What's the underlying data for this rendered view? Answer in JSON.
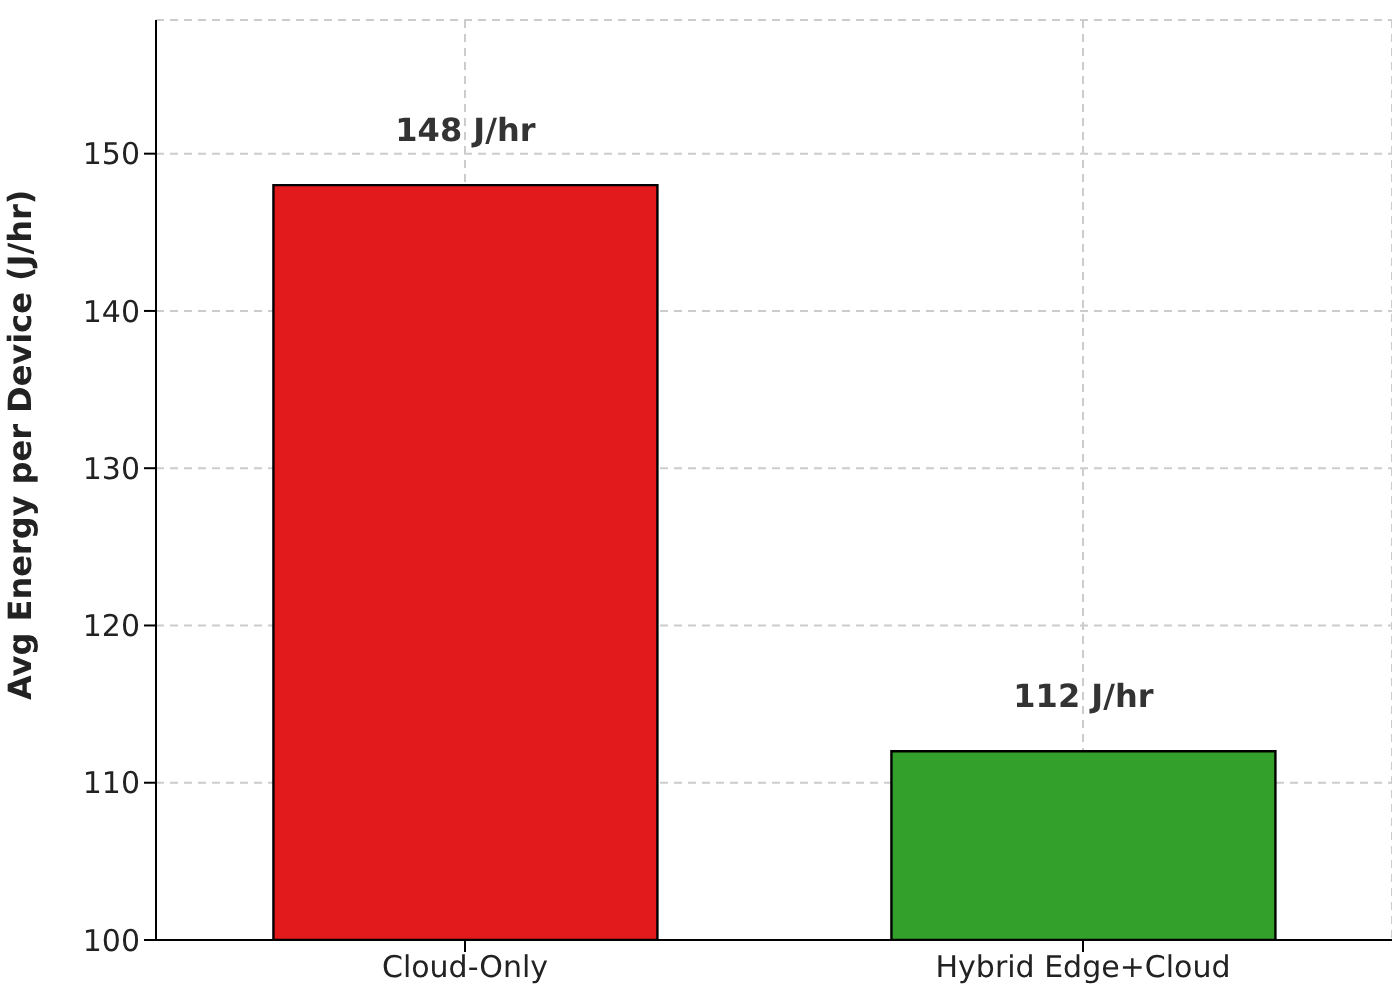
{
  "chart_data": {
    "type": "bar",
    "ylabel": "Avg Energy per Device (J/hr)",
    "categories": [
      "Cloud-Only",
      "Hybrid Edge+Cloud"
    ],
    "values": [
      148,
      112
    ],
    "colors": [
      "#e31a1c",
      "#33a02c"
    ],
    "value_labels": [
      "148 J/hr",
      "112 J/hr"
    ],
    "ylim": [
      100,
      158.5
    ],
    "yticks": [
      100,
      110,
      120,
      130,
      140,
      150
    ],
    "grid": true
  }
}
